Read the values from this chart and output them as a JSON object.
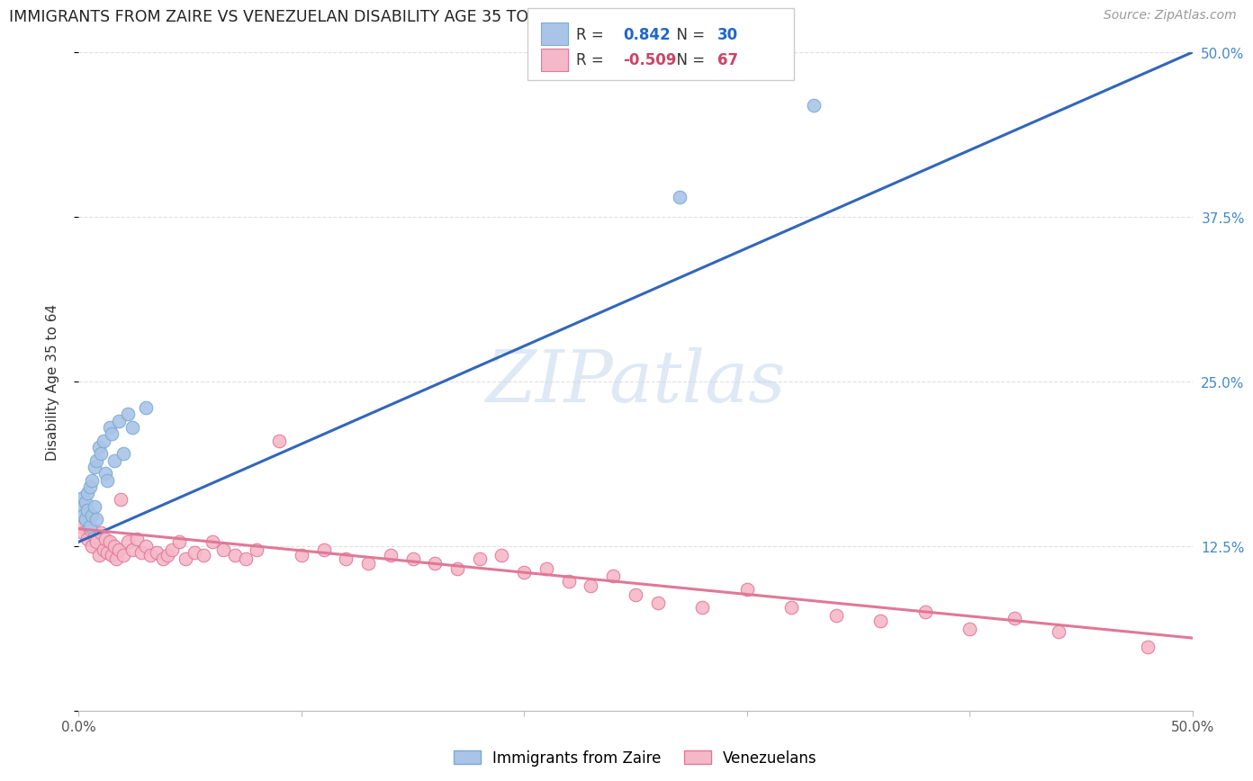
{
  "title": "IMMIGRANTS FROM ZAIRE VS VENEZUELAN DISABILITY AGE 35 TO 64 CORRELATION CHART",
  "source": "Source: ZipAtlas.com",
  "ylabel": "Disability Age 35 to 64",
  "xlim": [
    0.0,
    0.5
  ],
  "ylim": [
    0.0,
    0.5
  ],
  "background_color": "#ffffff",
  "grid_color": "#e0e0e0",
  "legend_R1": "0.842",
  "legend_N1": "30",
  "legend_R2": "-0.509",
  "legend_N2": "67",
  "zaire_color": "#aac4e8",
  "zaire_edge_color": "#7aaad0",
  "venezuela_color": "#f5b8c8",
  "venezuela_edge_color": "#e07898",
  "line1_color": "#3366bb",
  "line2_color": "#e07898",
  "zaire_points_x": [
    0.001,
    0.002,
    0.002,
    0.003,
    0.003,
    0.004,
    0.004,
    0.005,
    0.005,
    0.006,
    0.006,
    0.007,
    0.007,
    0.008,
    0.008,
    0.009,
    0.01,
    0.011,
    0.012,
    0.013,
    0.014,
    0.015,
    0.016,
    0.018,
    0.02,
    0.022,
    0.024,
    0.03,
    0.27,
    0.33
  ],
  "zaire_points_y": [
    0.155,
    0.162,
    0.148,
    0.158,
    0.145,
    0.165,
    0.152,
    0.17,
    0.14,
    0.175,
    0.148,
    0.185,
    0.155,
    0.19,
    0.145,
    0.2,
    0.195,
    0.205,
    0.18,
    0.175,
    0.215,
    0.21,
    0.19,
    0.22,
    0.195,
    0.225,
    0.215,
    0.23,
    0.39,
    0.46
  ],
  "venezuela_points_x": [
    0.001,
    0.002,
    0.003,
    0.004,
    0.005,
    0.006,
    0.007,
    0.008,
    0.009,
    0.01,
    0.011,
    0.012,
    0.013,
    0.014,
    0.015,
    0.016,
    0.017,
    0.018,
    0.019,
    0.02,
    0.022,
    0.024,
    0.026,
    0.028,
    0.03,
    0.032,
    0.035,
    0.038,
    0.04,
    0.042,
    0.045,
    0.048,
    0.052,
    0.056,
    0.06,
    0.065,
    0.07,
    0.075,
    0.08,
    0.09,
    0.1,
    0.11,
    0.12,
    0.13,
    0.14,
    0.15,
    0.16,
    0.17,
    0.18,
    0.19,
    0.2,
    0.21,
    0.22,
    0.23,
    0.24,
    0.25,
    0.26,
    0.28,
    0.3,
    0.32,
    0.34,
    0.36,
    0.38,
    0.4,
    0.42,
    0.44,
    0.48
  ],
  "venezuela_points_y": [
    0.14,
    0.135,
    0.145,
    0.13,
    0.138,
    0.125,
    0.132,
    0.128,
    0.118,
    0.135,
    0.122,
    0.13,
    0.12,
    0.128,
    0.118,
    0.125,
    0.115,
    0.122,
    0.16,
    0.118,
    0.128,
    0.122,
    0.13,
    0.12,
    0.125,
    0.118,
    0.12,
    0.115,
    0.118,
    0.122,
    0.128,
    0.115,
    0.12,
    0.118,
    0.128,
    0.122,
    0.118,
    0.115,
    0.122,
    0.205,
    0.118,
    0.122,
    0.115,
    0.112,
    0.118,
    0.115,
    0.112,
    0.108,
    0.115,
    0.118,
    0.105,
    0.108,
    0.098,
    0.095,
    0.102,
    0.088,
    0.082,
    0.078,
    0.092,
    0.078,
    0.072,
    0.068,
    0.075,
    0.062,
    0.07,
    0.06,
    0.048
  ],
  "zaire_line_x0": 0.0,
  "zaire_line_y0": 0.128,
  "zaire_line_x1": 0.5,
  "zaire_line_y1": 0.5,
  "venezuela_line_x0": 0.0,
  "venezuela_line_y0": 0.138,
  "venezuela_line_x1": 0.5,
  "venezuela_line_y1": 0.055
}
